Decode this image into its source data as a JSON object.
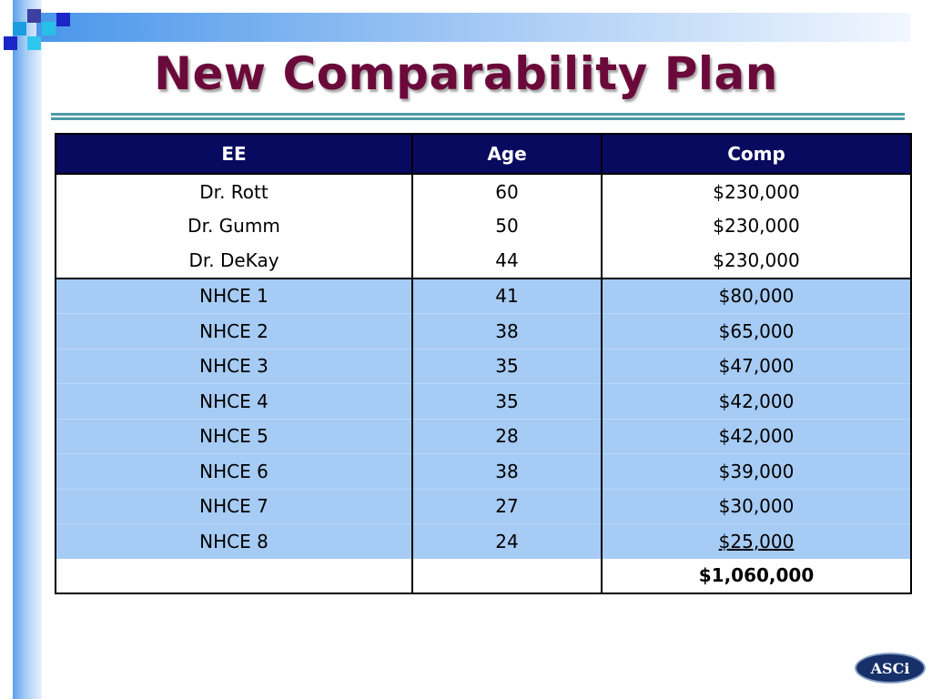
{
  "slide": {
    "title": "New Comparability Plan",
    "logo_text": "ASCi"
  },
  "colors": {
    "title": "#6b0a3a",
    "header_bg": "#070a5e",
    "nhce_row_bg": "#a6cbf4",
    "rule": "#4a9aa8"
  },
  "table": {
    "headers": [
      "EE",
      "Age",
      "Comp"
    ],
    "rows": [
      {
        "ee": "Dr. Rott",
        "age": "60",
        "comp": "$230,000"
      },
      {
        "ee": "Dr. Gumm",
        "age": "50",
        "comp": "$230,000"
      },
      {
        "ee": "Dr. DeKay",
        "age": "44",
        "comp": "$230,000"
      },
      {
        "ee": "NHCE 1",
        "age": "41",
        "comp": "$80,000"
      },
      {
        "ee": "NHCE 2",
        "age": "38",
        "comp": "$65,000"
      },
      {
        "ee": "NHCE 3",
        "age": "35",
        "comp": "$47,000"
      },
      {
        "ee": "NHCE 4",
        "age": "35",
        "comp": "$42,000"
      },
      {
        "ee": "NHCE 5",
        "age": "28",
        "comp": "$42,000"
      },
      {
        "ee": "NHCE 6",
        "age": "38",
        "comp": "$39,000"
      },
      {
        "ee": "NHCE 7",
        "age": "27",
        "comp": "$30,000"
      },
      {
        "ee": "NHCE 8",
        "age": "24",
        "comp": "$25,000"
      }
    ],
    "total": {
      "ee": "",
      "age": "",
      "comp": "$1,060,000"
    }
  }
}
